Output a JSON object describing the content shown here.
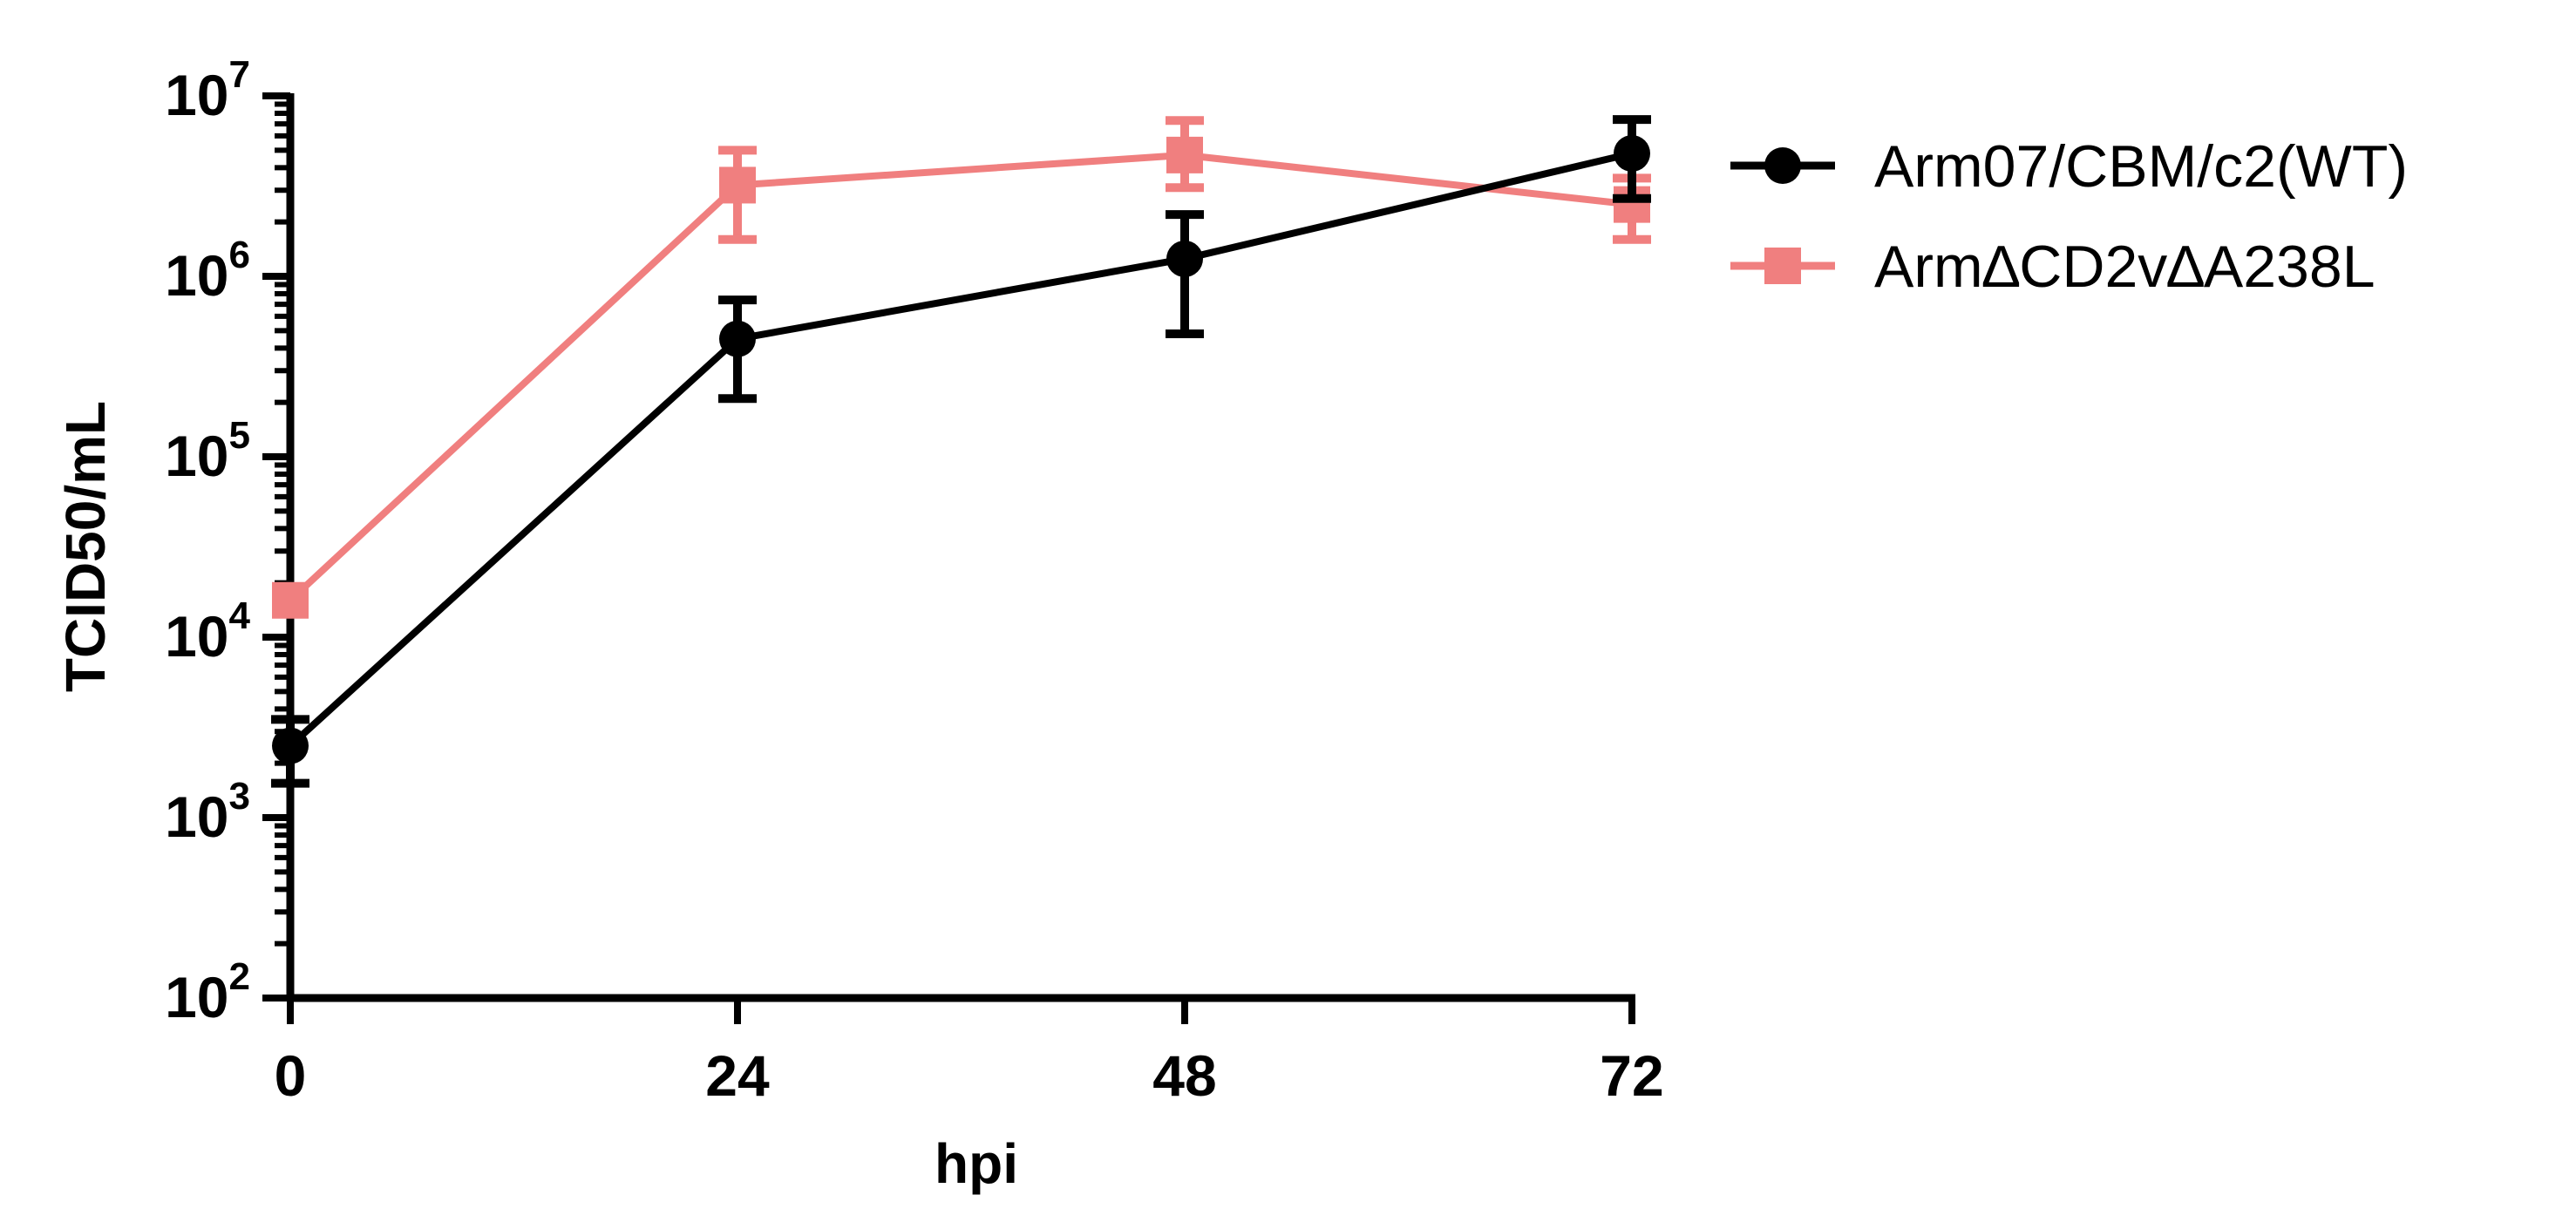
{
  "chart_data": {
    "type": "line",
    "title": "",
    "xlabel": "hpi",
    "ylabel": "TCID50/mL",
    "yscale": "log",
    "ylim": [
      100,
      10000000
    ],
    "xlim": [
      0,
      72
    ],
    "x_ticks": [
      0,
      24,
      48,
      72
    ],
    "x_tick_labels": [
      "0",
      "24",
      "48",
      "72"
    ],
    "y_ticks": [
      {
        "value": 100,
        "base": "10",
        "exp": "2"
      },
      {
        "value": 1000,
        "base": "10",
        "exp": "3"
      },
      {
        "value": 10000,
        "base": "10",
        "exp": "4"
      },
      {
        "value": 100000,
        "base": "10",
        "exp": "5"
      },
      {
        "value": 1000000,
        "base": "10",
        "exp": "6"
      },
      {
        "value": 10000000,
        "base": "10",
        "exp": "7"
      }
    ],
    "legend_position": "top-right",
    "series": [
      {
        "name": "Arm07/CBM/c2(WT)",
        "color": "#000000",
        "marker": "circle",
        "x": [
          0,
          24,
          48,
          72
        ],
        "values": [
          2500,
          450000,
          1250000,
          4800000
        ],
        "err_low": [
          1550,
          210000,
          480000,
          2700000
        ],
        "err_high": [
          3500,
          740000,
          2200000,
          7400000
        ]
      },
      {
        "name": "Arm∆CD2v∆A238L",
        "color": "#F07F7F",
        "marker": "square",
        "x": [
          0,
          24,
          48,
          72
        ],
        "values": [
          16000,
          3200000,
          4700000,
          2500000
        ],
        "err_low": [
          16000,
          1600000,
          3100000,
          1600000
        ],
        "err_high": [
          16000,
          5000000,
          7300000,
          3500000
        ]
      }
    ]
  }
}
